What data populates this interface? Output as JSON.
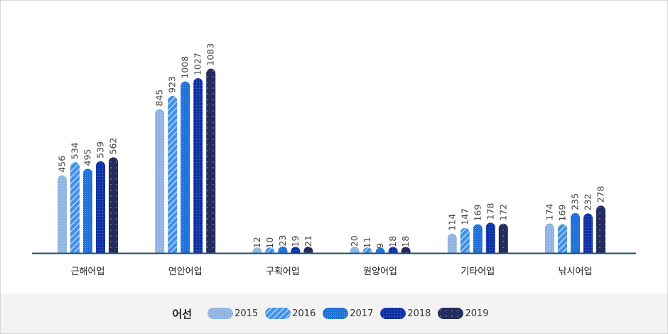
{
  "chart_data": {
    "type": "bar",
    "categories": [
      "근해어업",
      "연안어업",
      "구획어업",
      "원양어업",
      "기타어업",
      "낚시어업"
    ],
    "series": [
      {
        "name": "2015",
        "values": [
          456,
          845,
          12,
          20,
          114,
          174
        ],
        "color": "#8fb3e3",
        "pattern": "dots"
      },
      {
        "name": "2016",
        "values": [
          534,
          923,
          10,
          11,
          147,
          169
        ],
        "color": "#3f8ee8",
        "pattern": "diagonal-stripes"
      },
      {
        "name": "2017",
        "values": [
          495,
          1008,
          23,
          9,
          169,
          235
        ],
        "color": "#1f6fd6",
        "pattern": "fine-grid"
      },
      {
        "name": "2018",
        "values": [
          539,
          1027,
          19,
          18,
          178,
          232
        ],
        "color": "#0a2d9e",
        "pattern": "grid"
      },
      {
        "name": "2019",
        "values": [
          562,
          1083,
          21,
          18,
          172,
          278
        ],
        "color": "#242c5e",
        "pattern": "sparse-dots"
      }
    ],
    "legend_title": "어선",
    "legend_position": "bottom",
    "ylim": [
      0,
      1200
    ],
    "grid": false,
    "axis_color": "#1d4d6e"
  }
}
